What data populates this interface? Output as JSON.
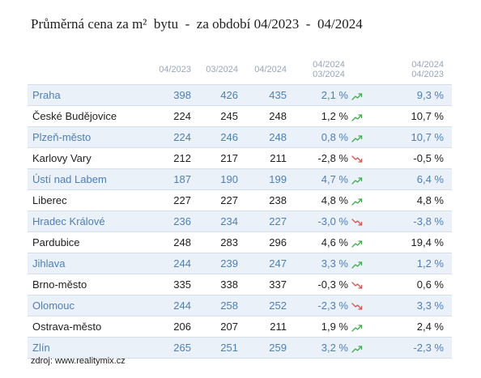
{
  "title": "Průměrná cena za m²  bytu  -  za období 04/2023  -  04/2024",
  "colors": {
    "header_text": "#9aa6b6",
    "row_alt_bg": "#eaf1f9",
    "row_alt_text": "#4e7fb6",
    "row_plain_text": "#1f1f1f",
    "trend_up": "#3fae4a",
    "trend_down": "#d9534f",
    "grid_line": "#d7dee8"
  },
  "table": {
    "headers": {
      "city": "",
      "p1": "04/2023",
      "p2": "03/2024",
      "p3": "04/2024",
      "change_month": [
        "04/2024",
        "03/2024"
      ],
      "change_year": [
        "04/2024",
        "04/2023"
      ]
    },
    "rows": [
      {
        "city": "Praha",
        "v1": "398",
        "v2": "426",
        "v3": "435",
        "ch1": "2,1 %",
        "trend": "up",
        "ch2": "9,3 %"
      },
      {
        "city": "České Budějovice",
        "v1": "224",
        "v2": "245",
        "v3": "248",
        "ch1": "1,2 %",
        "trend": "up",
        "ch2": "10,7 %"
      },
      {
        "city": "Plzeň-město",
        "v1": "224",
        "v2": "246",
        "v3": "248",
        "ch1": "0,8 %",
        "trend": "up",
        "ch2": "10,7 %"
      },
      {
        "city": "Karlovy Vary",
        "v1": "212",
        "v2": "217",
        "v3": "211",
        "ch1": "-2,8 %",
        "trend": "down",
        "ch2": "-0,5 %"
      },
      {
        "city": "Ústí nad Labem",
        "v1": "187",
        "v2": "190",
        "v3": "199",
        "ch1": "4,7 %",
        "trend": "up",
        "ch2": "6,4 %"
      },
      {
        "city": "Liberec",
        "v1": "227",
        "v2": "227",
        "v3": "238",
        "ch1": "4,8 %",
        "trend": "up",
        "ch2": "4,8 %"
      },
      {
        "city": "Hradec Králové",
        "v1": "236",
        "v2": "234",
        "v3": "227",
        "ch1": "-3,0 %",
        "trend": "down",
        "ch2": "-3,8 %"
      },
      {
        "city": "Pardubice",
        "v1": "248",
        "v2": "283",
        "v3": "296",
        "ch1": "4,6 %",
        "trend": "up",
        "ch2": "19,4 %"
      },
      {
        "city": "Jihlava",
        "v1": "244",
        "v2": "239",
        "v3": "247",
        "ch1": "3,3 %",
        "trend": "up",
        "ch2": "1,2 %"
      },
      {
        "city": "Brno-město",
        "v1": "335",
        "v2": "338",
        "v3": "337",
        "ch1": "-0,3 %",
        "trend": "down",
        "ch2": "0,6 %"
      },
      {
        "city": "Olomouc",
        "v1": "244",
        "v2": "258",
        "v3": "252",
        "ch1": "-2,3 %",
        "trend": "down",
        "ch2": "3,3 %"
      },
      {
        "city": "Ostrava-město",
        "v1": "206",
        "v2": "207",
        "v3": "211",
        "ch1": "1,9 %",
        "trend": "up",
        "ch2": "2,4 %"
      },
      {
        "city": "Zlín",
        "v1": "265",
        "v2": "251",
        "v3": "259",
        "ch1": "3,2 %",
        "trend": "up",
        "ch2": "-2,3 %"
      }
    ]
  },
  "source": "zdroj:  www.realitymix.cz",
  "icons": {
    "up": "trend-up-icon",
    "down": "trend-down-icon"
  }
}
